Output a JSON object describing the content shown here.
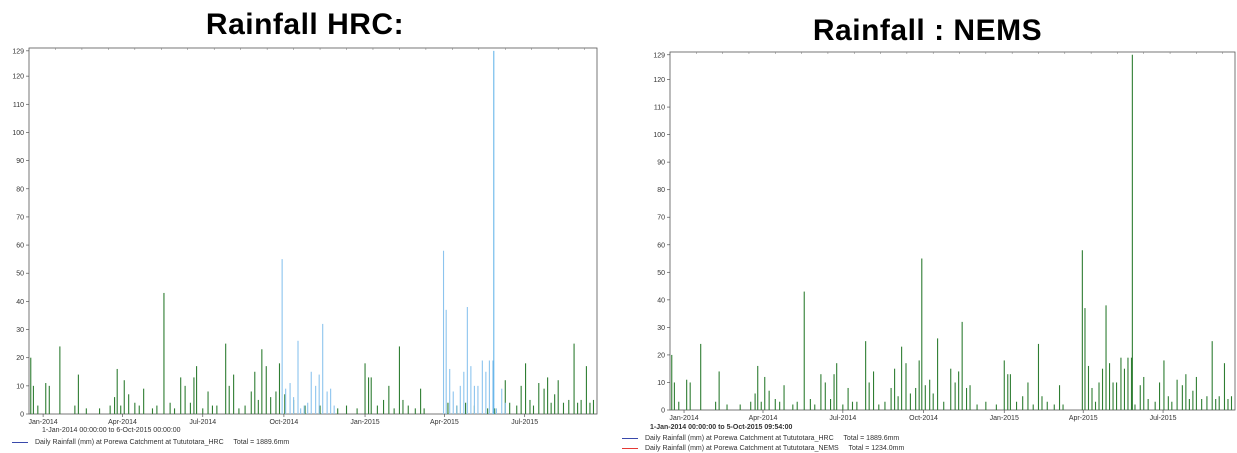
{
  "colors": {
    "nems_series": "#2e7d32",
    "hrc_series": "#8cc4ee",
    "hrc_spike": "#5ab0e8",
    "legend_blue": "#3949ab",
    "legend_red": "#e53935"
  },
  "chart_data": [
    {
      "type": "bar",
      "title": "Rainfall HRC:",
      "ylim": [
        0,
        130
      ],
      "yticks": [
        0,
        10,
        20,
        30,
        40,
        50,
        60,
        70,
        80,
        90,
        100,
        110,
        120,
        129
      ],
      "xlim": [
        0,
        644
      ],
      "xticks": [
        {
          "t": 16,
          "label": "Jan-2014"
        },
        {
          "t": 106,
          "label": "Apr-2014"
        },
        {
          "t": 197,
          "label": "Jul-2014"
        },
        {
          "t": 289,
          "label": "Oct-2014"
        },
        {
          "t": 381,
          "label": "Jan-2015"
        },
        {
          "t": 471,
          "label": "Apr-2015"
        },
        {
          "t": 562,
          "label": "Jul-2015"
        }
      ],
      "caption": "1-Jan-2014 00:00:00 to 6-Oct-2015 00:00:00",
      "legend": [
        {
          "label": "Daily Rainfall (mm) at Porewa Catchment at Tututotara_HRC",
          "total": "Total = 1889.6mm",
          "color": "#3949ab"
        }
      ],
      "series": [
        {
          "key": "green",
          "points": [
            [
              2,
              20
            ],
            [
              5,
              10
            ],
            [
              10,
              3
            ],
            [
              19,
              11
            ],
            [
              23,
              10
            ],
            [
              35,
              24
            ],
            [
              52,
              3
            ],
            [
              56,
              14
            ],
            [
              65,
              2
            ],
            [
              80,
              2
            ],
            [
              92,
              3
            ],
            [
              97,
              6
            ],
            [
              100,
              16
            ],
            [
              104,
              3
            ],
            [
              108,
              12
            ],
            [
              113,
              7
            ],
            [
              120,
              4
            ],
            [
              125,
              3
            ],
            [
              130,
              9
            ],
            [
              140,
              2
            ],
            [
              145,
              3
            ],
            [
              153,
              43
            ],
            [
              160,
              4
            ],
            [
              165,
              2
            ],
            [
              172,
              13
            ],
            [
              177,
              10
            ],
            [
              183,
              4
            ],
            [
              187,
              13
            ],
            [
              190,
              17
            ],
            [
              197,
              2
            ],
            [
              203,
              8
            ],
            [
              208,
              3
            ],
            [
              213,
              3
            ],
            [
              223,
              25
            ],
            [
              227,
              10
            ],
            [
              232,
              14
            ],
            [
              238,
              2
            ],
            [
              245,
              3
            ],
            [
              252,
              8
            ],
            [
              256,
              15
            ],
            [
              260,
              5
            ],
            [
              264,
              23
            ],
            [
              269,
              17
            ],
            [
              274,
              6
            ],
            [
              280,
              8
            ],
            [
              284,
              18
            ],
            [
              290,
              7
            ],
            [
              300,
              5
            ],
            [
              313,
              3
            ],
            [
              330,
              3
            ],
            [
              350,
              2
            ],
            [
              360,
              3
            ],
            [
              372,
              2
            ],
            [
              381,
              18
            ],
            [
              385,
              13
            ],
            [
              388,
              13
            ],
            [
              395,
              3
            ],
            [
              402,
              5
            ],
            [
              408,
              10
            ],
            [
              414,
              2
            ],
            [
              420,
              24
            ],
            [
              424,
              5
            ],
            [
              430,
              3
            ],
            [
              438,
              2
            ],
            [
              444,
              9
            ],
            [
              448,
              2
            ],
            [
              475,
              4
            ],
            [
              485,
              3
            ],
            [
              495,
              4
            ],
            [
              505,
              3
            ],
            [
              520,
              2
            ],
            [
              528,
              2
            ],
            [
              540,
              12
            ],
            [
              545,
              4
            ],
            [
              553,
              3
            ],
            [
              558,
              10
            ],
            [
              563,
              18
            ],
            [
              568,
              5
            ],
            [
              572,
              3
            ],
            [
              578,
              11
            ],
            [
              584,
              9
            ],
            [
              588,
              13
            ],
            [
              592,
              4
            ],
            [
              596,
              7
            ],
            [
              600,
              12
            ],
            [
              606,
              4
            ],
            [
              612,
              5
            ],
            [
              618,
              25
            ],
            [
              622,
              4
            ],
            [
              626,
              5
            ],
            [
              632,
              17
            ],
            [
              636,
              4
            ],
            [
              640,
              5
            ]
          ]
        },
        {
          "key": "lightblue",
          "points": [
            [
              287,
              55
            ],
            [
              291,
              9
            ],
            [
              296,
              11
            ],
            [
              300,
              6
            ],
            [
              305,
              26
            ],
            [
              308,
              2
            ],
            [
              312,
              3
            ],
            [
              316,
              4
            ],
            [
              320,
              15
            ],
            [
              325,
              10
            ],
            [
              329,
              14
            ],
            [
              333,
              32
            ],
            [
              338,
              8
            ],
            [
              342,
              9
            ],
            [
              346,
              3
            ],
            [
              470,
              58
            ],
            [
              473,
              37
            ],
            [
              477,
              16
            ],
            [
              481,
              8
            ],
            [
              485,
              3
            ],
            [
              489,
              10
            ],
            [
              493,
              15
            ],
            [
              497,
              38
            ],
            [
              501,
              17
            ],
            [
              505,
              10
            ],
            [
              509,
              10
            ],
            [
              514,
              19
            ],
            [
              518,
              15
            ],
            [
              522,
              19
            ],
            [
              526,
              19
            ],
            [
              530,
              2
            ],
            [
              536,
              9
            ],
            [
              540,
              4
            ]
          ]
        },
        {
          "key": "spike",
          "points": [
            [
              527,
              129
            ]
          ]
        }
      ]
    },
    {
      "type": "bar",
      "title": "Rainfall : NEMS",
      "ylim": [
        0,
        130
      ],
      "yticks": [
        0,
        10,
        20,
        30,
        40,
        50,
        60,
        70,
        80,
        90,
        100,
        110,
        120,
        129
      ],
      "xlim": [
        0,
        644
      ],
      "xticks": [
        {
          "t": 16,
          "label": "Jan-2014"
        },
        {
          "t": 106,
          "label": "Apr-2014"
        },
        {
          "t": 197,
          "label": "Jul-2014"
        },
        {
          "t": 289,
          "label": "Oct-2014"
        },
        {
          "t": 381,
          "label": "Jan-2015"
        },
        {
          "t": 471,
          "label": "Apr-2015"
        },
        {
          "t": 562,
          "label": "Jul-2015"
        }
      ],
      "caption": "1-Jan-2014 00:00:00 to 5-Oct-2015 09:54:00",
      "legend": [
        {
          "label": "Daily Rainfall (mm) at Porewa Catchment at Tututotara_HRC",
          "total": "Total = 1889.6mm",
          "color": "#3949ab"
        },
        {
          "label": "Daily Rainfall (mm) at Porewa Catchment at Tututotara_NEMS",
          "total": "Total = 1234.0mm",
          "color": "#e53935"
        }
      ],
      "series": [
        {
          "key": "green",
          "points": [
            [
              2,
              20
            ],
            [
              5,
              10
            ],
            [
              10,
              3
            ],
            [
              19,
              11
            ],
            [
              23,
              10
            ],
            [
              35,
              24
            ],
            [
              52,
              3
            ],
            [
              56,
              14
            ],
            [
              65,
              2
            ],
            [
              80,
              2
            ],
            [
              92,
              3
            ],
            [
              97,
              6
            ],
            [
              100,
              16
            ],
            [
              104,
              3
            ],
            [
              108,
              12
            ],
            [
              113,
              7
            ],
            [
              120,
              4
            ],
            [
              125,
              3
            ],
            [
              130,
              9
            ],
            [
              140,
              2
            ],
            [
              145,
              3
            ],
            [
              153,
              43
            ],
            [
              160,
              4
            ],
            [
              165,
              2
            ],
            [
              172,
              13
            ],
            [
              177,
              10
            ],
            [
              183,
              4
            ],
            [
              187,
              13
            ],
            [
              190,
              17
            ],
            [
              197,
              2
            ],
            [
              203,
              8
            ],
            [
              208,
              3
            ],
            [
              213,
              3
            ],
            [
              223,
              25
            ],
            [
              227,
              10
            ],
            [
              232,
              14
            ],
            [
              238,
              2
            ],
            [
              245,
              3
            ],
            [
              252,
              8
            ],
            [
              256,
              15
            ],
            [
              260,
              5
            ],
            [
              264,
              23
            ],
            [
              269,
              17
            ],
            [
              274,
              6
            ],
            [
              280,
              8
            ],
            [
              284,
              18
            ],
            [
              287,
              55
            ],
            [
              291,
              9
            ],
            [
              296,
              11
            ],
            [
              300,
              6
            ],
            [
              305,
              26
            ],
            [
              312,
              3
            ],
            [
              320,
              15
            ],
            [
              325,
              10
            ],
            [
              329,
              14
            ],
            [
              333,
              32
            ],
            [
              338,
              8
            ],
            [
              342,
              9
            ],
            [
              350,
              2
            ],
            [
              360,
              3
            ],
            [
              372,
              2
            ],
            [
              381,
              18
            ],
            [
              385,
              13
            ],
            [
              388,
              13
            ],
            [
              395,
              3
            ],
            [
              402,
              5
            ],
            [
              408,
              10
            ],
            [
              414,
              2
            ],
            [
              420,
              24
            ],
            [
              424,
              5
            ],
            [
              430,
              3
            ],
            [
              438,
              2
            ],
            [
              444,
              9
            ],
            [
              448,
              2
            ],
            [
              470,
              58
            ],
            [
              473,
              37
            ],
            [
              477,
              16
            ],
            [
              481,
              8
            ],
            [
              485,
              3
            ],
            [
              489,
              10
            ],
            [
              493,
              15
            ],
            [
              497,
              38
            ],
            [
              501,
              17
            ],
            [
              505,
              10
            ],
            [
              509,
              10
            ],
            [
              514,
              19
            ],
            [
              518,
              15
            ],
            [
              522,
              19
            ],
            [
              526,
              19
            ],
            [
              527,
              129
            ],
            [
              530,
              2
            ],
            [
              536,
              9
            ],
            [
              540,
              12
            ],
            [
              545,
              4
            ],
            [
              553,
              3
            ],
            [
              558,
              10
            ],
            [
              563,
              18
            ],
            [
              568,
              5
            ],
            [
              572,
              3
            ],
            [
              578,
              11
            ],
            [
              584,
              9
            ],
            [
              588,
              13
            ],
            [
              592,
              4
            ],
            [
              596,
              7
            ],
            [
              600,
              12
            ],
            [
              606,
              4
            ],
            [
              612,
              5
            ],
            [
              618,
              25
            ],
            [
              622,
              4
            ],
            [
              626,
              5
            ],
            [
              632,
              17
            ],
            [
              636,
              4
            ],
            [
              640,
              5
            ]
          ]
        }
      ]
    }
  ]
}
